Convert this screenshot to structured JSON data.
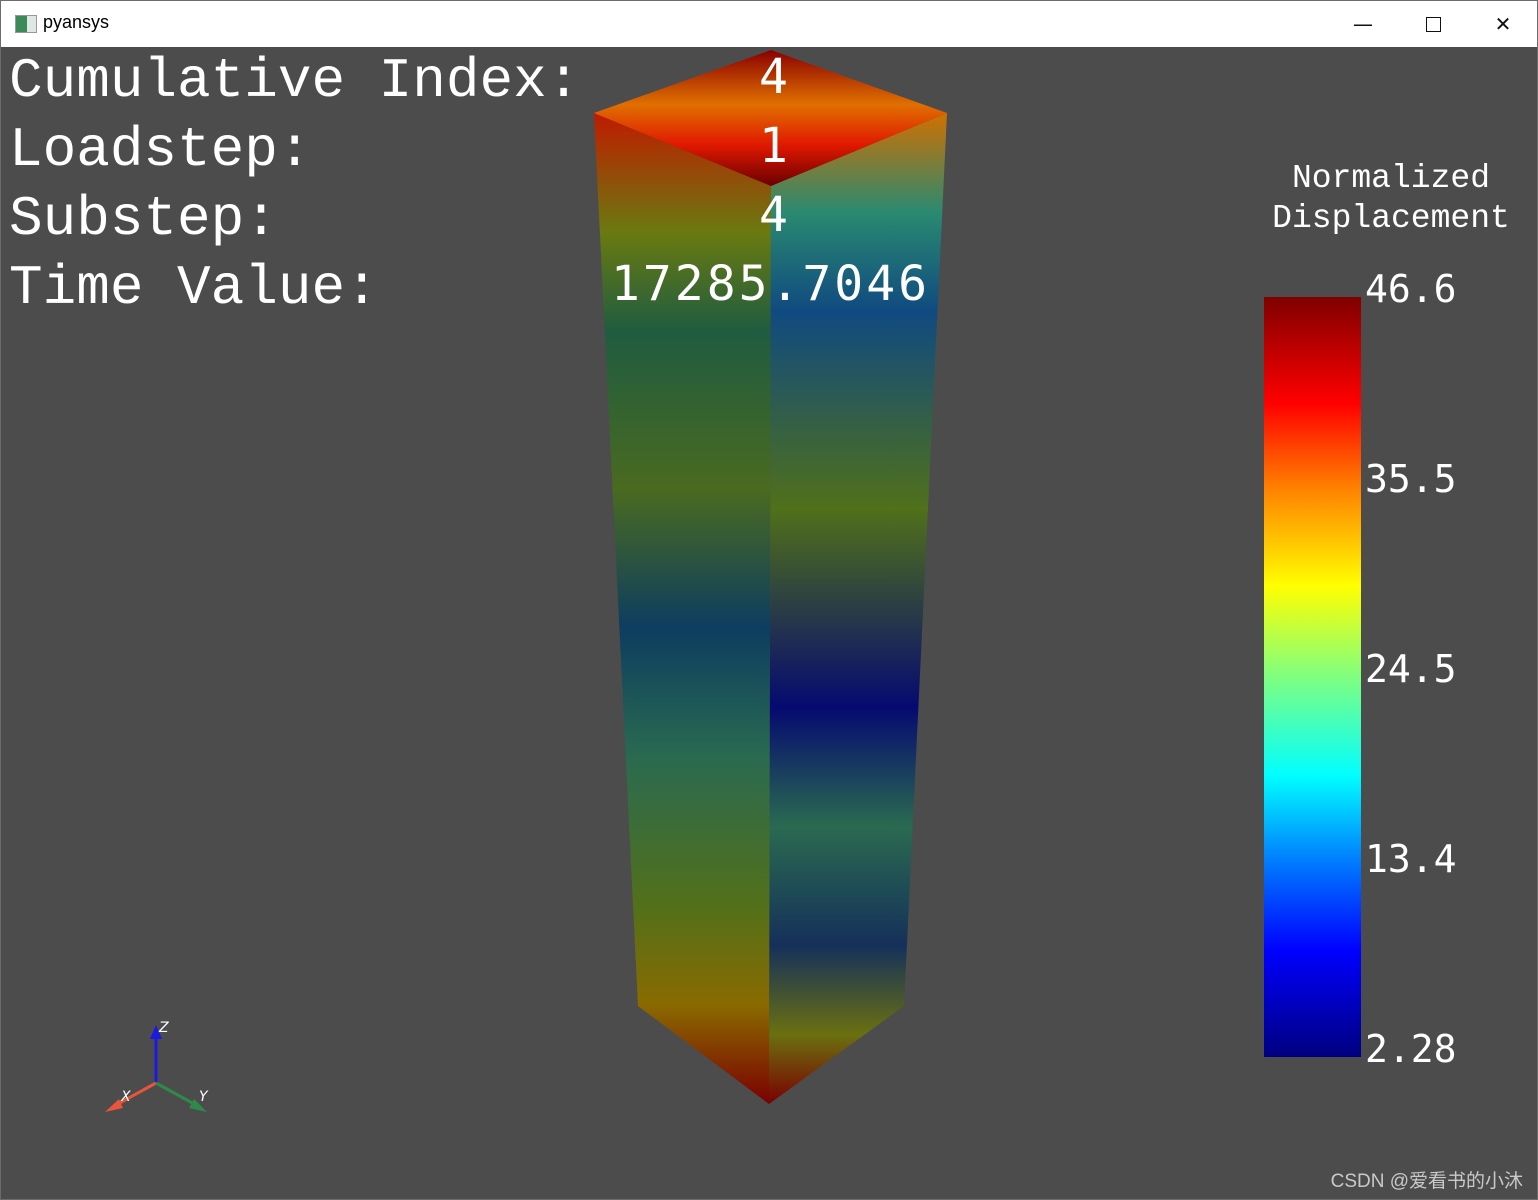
{
  "window": {
    "title": "pyansys",
    "minimize_icon": "minimize-icon",
    "maximize_icon": "maximize-icon",
    "close_icon": "close-icon"
  },
  "info": {
    "cumulative_index_label": "Cumulative Index:",
    "cumulative_index": "4",
    "loadstep_label": "Loadstep:",
    "loadstep": "1",
    "substep_label": "Substep:",
    "substep": "4",
    "time_value_label": "Time Value:",
    "time_value": "17285.7046"
  },
  "scalar_bar": {
    "title_line1": "Normalized",
    "title_line2": "Displacement",
    "labels": [
      "46.6",
      "35.5",
      "24.5",
      "13.4",
      "2.28"
    ],
    "colormap": "jet"
  },
  "axes": {
    "x": "X",
    "y": "Y",
    "z": "Z",
    "x_color": "#e8553a",
    "y_color": "#2f8a4a",
    "z_color": "#1a1ae0"
  },
  "background_color": "#4c4c4c",
  "watermark": "CSDN @爱看书的小沐"
}
